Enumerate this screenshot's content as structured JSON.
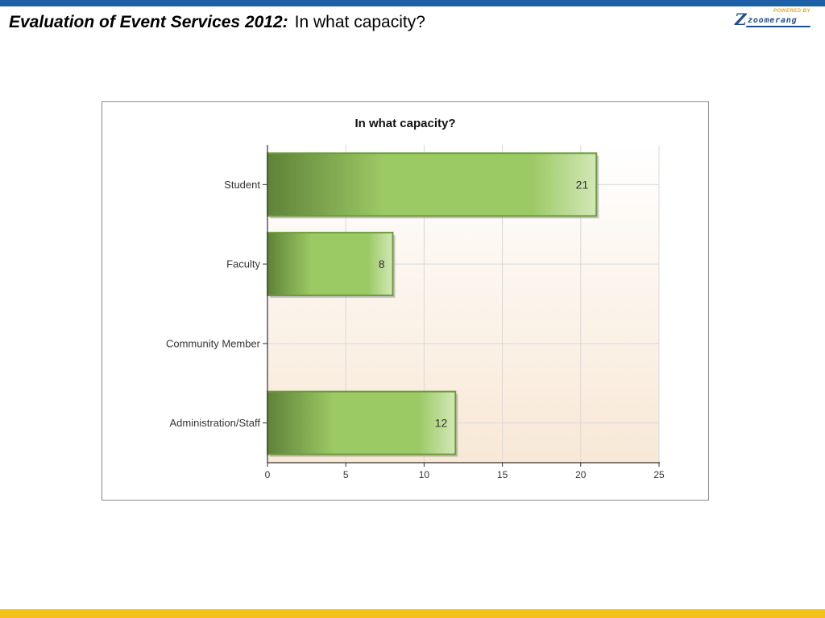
{
  "slide": {
    "title_lead": "Evaluation of Event Services 2012:",
    "title_rest": "In what capacity?"
  },
  "logo": {
    "name": "zoomerang",
    "tagline": "POWERED BY"
  },
  "colors": {
    "top_bar": "#1f5fa8",
    "bottom_bar": "#f2c21b",
    "bar_dark": "#5f8238",
    "bar_mid": "#9bc964",
    "bar_light": "#d2e8b6",
    "bar_border": "#6d9a3d",
    "plot_bg_top": "#ffffff",
    "plot_bg_bottom": "#f8e8d6",
    "grid": "#d9d9d9"
  },
  "chart_data": {
    "type": "bar",
    "orientation": "horizontal",
    "title": "In what capacity?",
    "categories": [
      "Student",
      "Faculty",
      "Community Member",
      "Administration/Staff"
    ],
    "values": [
      21,
      8,
      0,
      12
    ],
    "data_labels": [
      "21",
      "8",
      "",
      "12"
    ],
    "xlim": [
      0,
      25
    ],
    "x_ticks": [
      0,
      5,
      10,
      15,
      20,
      25
    ],
    "grid": true,
    "xlabel": "",
    "ylabel": ""
  }
}
